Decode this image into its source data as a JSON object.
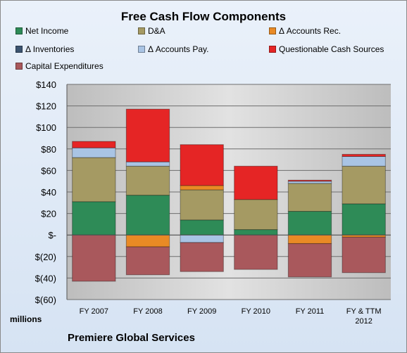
{
  "chart_data": {
    "type": "bar",
    "stacked": true,
    "title": "Free Cash Flow Components",
    "units_label": "millions",
    "source_label": "Premiere Global Services",
    "categories": [
      "FY 2007",
      "FY 2008",
      "FY 2009",
      "FY 2010",
      "FY 2011",
      "FY & TTM 2012"
    ],
    "category_lines": [
      [
        "FY 2007"
      ],
      [
        "FY 2008"
      ],
      [
        "FY 2009"
      ],
      [
        "FY 2010"
      ],
      [
        "FY 2011"
      ],
      [
        "FY & TTM",
        "2012"
      ]
    ],
    "ylim": [
      -60,
      140
    ],
    "yticks": [
      {
        "value": 140,
        "label": "$140"
      },
      {
        "value": 120,
        "label": "$120"
      },
      {
        "value": 100,
        "label": "$100"
      },
      {
        "value": 80,
        "label": "$80"
      },
      {
        "value": 60,
        "label": "$60"
      },
      {
        "value": 40,
        "label": "$40"
      },
      {
        "value": 20,
        "label": "$20"
      },
      {
        "value": 0,
        "label": "$-"
      },
      {
        "value": -20,
        "label": "$(20)"
      },
      {
        "value": -40,
        "label": "$(40)"
      },
      {
        "value": -60,
        "label": "$(60)"
      }
    ],
    "grid": true,
    "legend_position": "top",
    "series": [
      {
        "name": "Net Income",
        "color": "#2e8b57",
        "values": [
          31,
          37,
          14,
          5,
          22,
          29
        ]
      },
      {
        "name": "D&A",
        "color": "#a59a63",
        "values": [
          41,
          27,
          28,
          28,
          26,
          35
        ]
      },
      {
        "name": "Δ Accounts Rec.",
        "color": "#e98a25",
        "values": [
          0,
          -11,
          4,
          0,
          -8,
          -2
        ]
      },
      {
        "name": "Δ Inventories",
        "color": "#3c5470",
        "values": [
          0,
          0,
          0,
          0,
          0,
          0
        ]
      },
      {
        "name": "Δ Accounts Pay.",
        "color": "#a9c4e4",
        "values": [
          9,
          4,
          -7,
          0,
          2,
          9
        ]
      },
      {
        "name": "Questionable Cash Sources",
        "color": "#e52525",
        "values": [
          6,
          49,
          38,
          31,
          1,
          2
        ]
      },
      {
        "name": "Capital Expenditures",
        "color": "#a9585c",
        "values": [
          -43,
          -26,
          -27,
          -32,
          -31,
          -33
        ]
      }
    ]
  }
}
